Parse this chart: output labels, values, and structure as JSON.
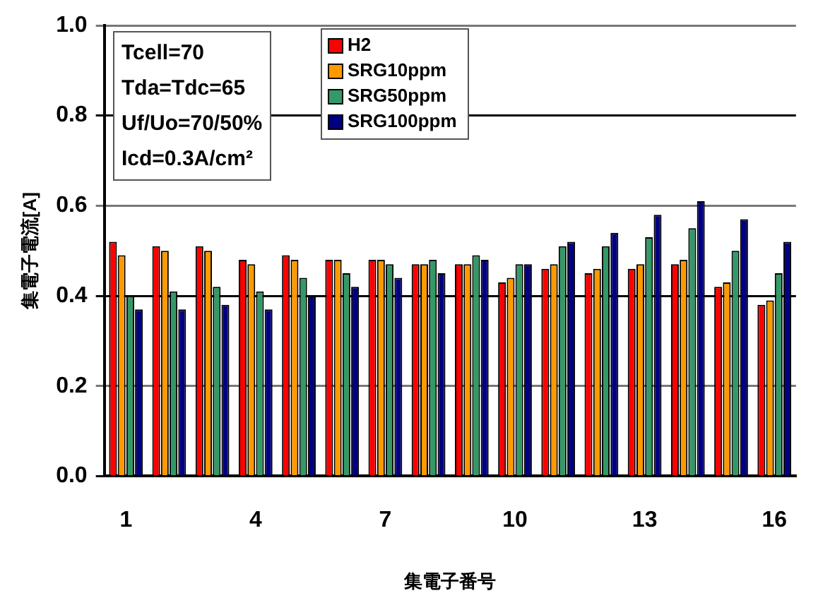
{
  "chart_data": {
    "type": "bar",
    "categories": [
      "1",
      null,
      null,
      "4",
      null,
      null,
      "7",
      null,
      null,
      "10",
      null,
      null,
      "13",
      null,
      null,
      "16"
    ],
    "series": [
      {
        "name": "H2",
        "color": "#ff0000",
        "values": [
          0.52,
          0.51,
          0.51,
          0.48,
          0.49,
          0.48,
          0.48,
          0.47,
          0.47,
          0.43,
          0.46,
          0.45,
          0.46,
          0.47,
          0.42,
          0.38
        ]
      },
      {
        "name": "SRG10ppm",
        "color": "#ff9900",
        "values": [
          0.49,
          0.5,
          0.5,
          0.47,
          0.48,
          0.48,
          0.48,
          0.47,
          0.47,
          0.44,
          0.47,
          0.46,
          0.47,
          0.48,
          0.43,
          0.39
        ]
      },
      {
        "name": "SRG50ppm",
        "color": "#339966",
        "values": [
          0.4,
          0.41,
          0.42,
          0.41,
          0.44,
          0.45,
          0.47,
          0.48,
          0.49,
          0.47,
          0.51,
          0.51,
          0.53,
          0.55,
          0.5,
          0.45
        ]
      },
      {
        "name": "SRG100ppm",
        "color": "#000080",
        "values": [
          0.37,
          0.37,
          0.38,
          0.37,
          0.4,
          0.42,
          0.44,
          0.45,
          0.48,
          0.47,
          0.52,
          0.54,
          0.58,
          0.61,
          0.57,
          0.52
        ]
      }
    ],
    "xlabel": "集電子番号",
    "ylabel": "集電子電流[A]",
    "ylim": [
      0,
      1.0
    ],
    "yticks": [
      {
        "value": 0,
        "label": "0.0"
      },
      {
        "value": 0.2,
        "label": "0.2"
      },
      {
        "value": 0.4,
        "label": "0.4"
      },
      {
        "value": 0.6,
        "label": "0.6"
      },
      {
        "value": 0.8,
        "label": "0.8"
      },
      {
        "value": 1.0,
        "label": "1.0"
      }
    ],
    "grid": "y",
    "legend": "top left",
    "annotations": [
      "Tcell=70",
      "Tda=Tdc=65",
      "Uf/Uo=70/50%",
      "Icd=0.3A/cm²"
    ]
  }
}
